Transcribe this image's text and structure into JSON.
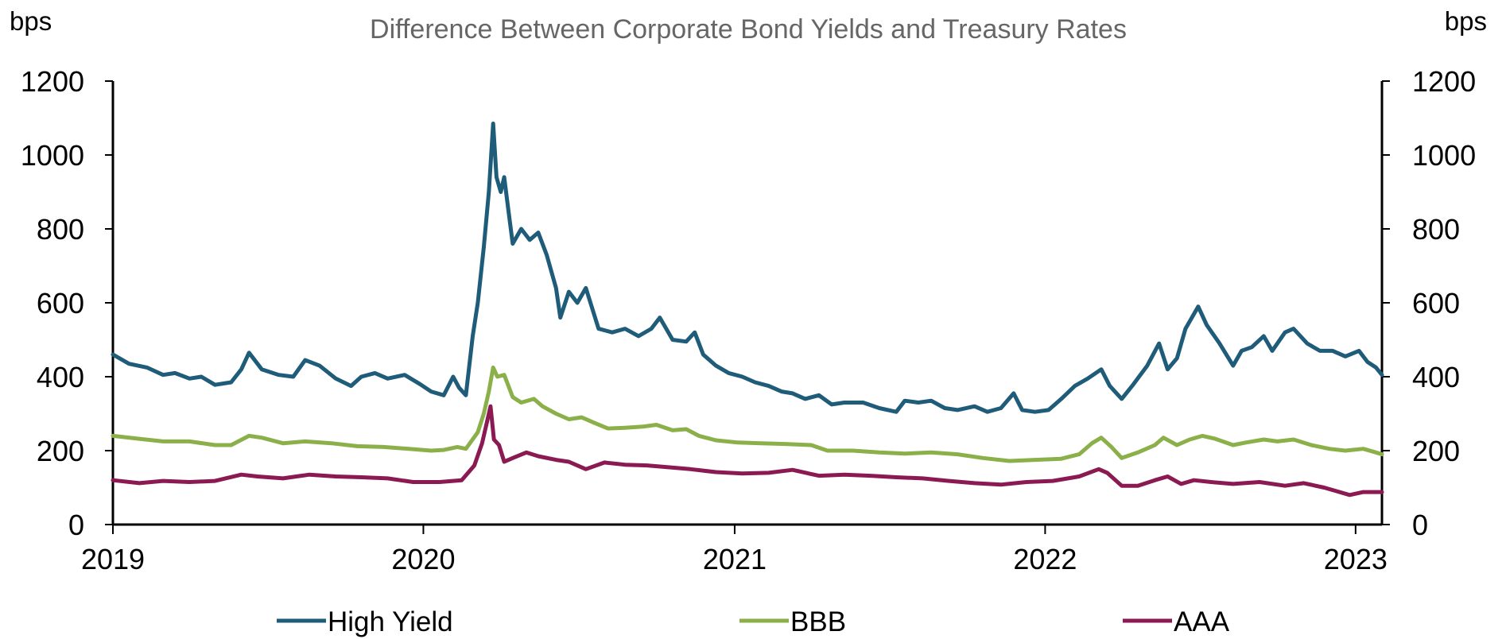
{
  "chart_data": {
    "type": "line",
    "title": "Difference Between Corporate Bond Yields and Treasury Rates",
    "y_unit_left": "bps",
    "y_unit_right": "bps",
    "ylim": [
      0,
      1200
    ],
    "y_ticks": [
      "0",
      "200",
      "400",
      "600",
      "800",
      "1000",
      "1200"
    ],
    "xlim": [
      "2019-01-01",
      "2023-02-01"
    ],
    "x_ticks": [
      {
        "label": "2019",
        "date": "2019-01-01"
      },
      {
        "label": "2020",
        "date": "2020-01-01"
      },
      {
        "label": "2021",
        "date": "2021-01-01"
      },
      {
        "label": "2022",
        "date": "2022-01-01"
      },
      {
        "label": "2023",
        "date": "2023-01-01"
      }
    ],
    "grid": false,
    "legend_position": "bottom",
    "series": [
      {
        "name": "High Yield",
        "color": "#1f5c7a",
        "points": [
          [
            "2019-01-01",
            460
          ],
          [
            "2019-01-20",
            435
          ],
          [
            "2019-02-10",
            425
          ],
          [
            "2019-03-01",
            405
          ],
          [
            "2019-03-15",
            410
          ],
          [
            "2019-04-01",
            395
          ],
          [
            "2019-04-15",
            400
          ],
          [
            "2019-05-01",
            378
          ],
          [
            "2019-05-20",
            385
          ],
          [
            "2019-06-01",
            420
          ],
          [
            "2019-06-10",
            465
          ],
          [
            "2019-06-25",
            420
          ],
          [
            "2019-07-15",
            405
          ],
          [
            "2019-08-01",
            400
          ],
          [
            "2019-08-15",
            445
          ],
          [
            "2019-09-01",
            430
          ],
          [
            "2019-09-20",
            395
          ],
          [
            "2019-10-08",
            375
          ],
          [
            "2019-10-20",
            400
          ],
          [
            "2019-11-05",
            410
          ],
          [
            "2019-11-20",
            395
          ],
          [
            "2019-12-10",
            405
          ],
          [
            "2019-12-28",
            380
          ],
          [
            "2020-01-10",
            360
          ],
          [
            "2020-01-25",
            350
          ],
          [
            "2020-02-05",
            400
          ],
          [
            "2020-02-12",
            370
          ],
          [
            "2020-02-20",
            350
          ],
          [
            "2020-02-28",
            510
          ],
          [
            "2020-03-05",
            600
          ],
          [
            "2020-03-12",
            750
          ],
          [
            "2020-03-18",
            900
          ],
          [
            "2020-03-23",
            1085
          ],
          [
            "2020-03-27",
            940
          ],
          [
            "2020-04-01",
            900
          ],
          [
            "2020-04-05",
            940
          ],
          [
            "2020-04-10",
            850
          ],
          [
            "2020-04-15",
            760
          ],
          [
            "2020-04-25",
            800
          ],
          [
            "2020-05-05",
            770
          ],
          [
            "2020-05-15",
            790
          ],
          [
            "2020-05-25",
            730
          ],
          [
            "2020-06-05",
            640
          ],
          [
            "2020-06-10",
            560
          ],
          [
            "2020-06-20",
            630
          ],
          [
            "2020-06-30",
            600
          ],
          [
            "2020-07-10",
            640
          ],
          [
            "2020-07-25",
            530
          ],
          [
            "2020-08-10",
            520
          ],
          [
            "2020-08-25",
            530
          ],
          [
            "2020-09-10",
            510
          ],
          [
            "2020-09-25",
            530
          ],
          [
            "2020-10-05",
            560
          ],
          [
            "2020-10-20",
            500
          ],
          [
            "2020-11-05",
            495
          ],
          [
            "2020-11-15",
            520
          ],
          [
            "2020-11-25",
            460
          ],
          [
            "2020-12-10",
            430
          ],
          [
            "2020-12-25",
            410
          ],
          [
            "2021-01-10",
            400
          ],
          [
            "2021-01-25",
            385
          ],
          [
            "2021-02-10",
            375
          ],
          [
            "2021-02-25",
            360
          ],
          [
            "2021-03-10",
            355
          ],
          [
            "2021-03-25",
            340
          ],
          [
            "2021-04-10",
            350
          ],
          [
            "2021-04-25",
            325
          ],
          [
            "2021-05-10",
            330
          ],
          [
            "2021-06-01",
            330
          ],
          [
            "2021-06-20",
            315
          ],
          [
            "2021-07-10",
            305
          ],
          [
            "2021-07-20",
            335
          ],
          [
            "2021-08-05",
            330
          ],
          [
            "2021-08-20",
            335
          ],
          [
            "2021-09-05",
            315
          ],
          [
            "2021-09-20",
            310
          ],
          [
            "2021-10-10",
            320
          ],
          [
            "2021-10-25",
            305
          ],
          [
            "2021-11-10",
            315
          ],
          [
            "2021-11-25",
            355
          ],
          [
            "2021-12-05",
            310
          ],
          [
            "2021-12-20",
            305
          ],
          [
            "2022-01-05",
            310
          ],
          [
            "2022-01-20",
            340
          ],
          [
            "2022-02-05",
            375
          ],
          [
            "2022-02-20",
            395
          ],
          [
            "2022-03-08",
            420
          ],
          [
            "2022-03-18",
            375
          ],
          [
            "2022-04-01",
            340
          ],
          [
            "2022-04-15",
            380
          ],
          [
            "2022-05-01",
            430
          ],
          [
            "2022-05-15",
            490
          ],
          [
            "2022-05-25",
            420
          ],
          [
            "2022-06-05",
            450
          ],
          [
            "2022-06-15",
            530
          ],
          [
            "2022-06-30",
            590
          ],
          [
            "2022-07-10",
            540
          ],
          [
            "2022-07-25",
            490
          ],
          [
            "2022-08-10",
            430
          ],
          [
            "2022-08-20",
            470
          ],
          [
            "2022-09-01",
            480
          ],
          [
            "2022-09-15",
            510
          ],
          [
            "2022-09-25",
            470
          ],
          [
            "2022-10-10",
            520
          ],
          [
            "2022-10-20",
            530
          ],
          [
            "2022-11-05",
            490
          ],
          [
            "2022-11-20",
            470
          ],
          [
            "2022-12-05",
            470
          ],
          [
            "2022-12-20",
            455
          ],
          [
            "2023-01-05",
            470
          ],
          [
            "2023-01-15",
            440
          ],
          [
            "2023-01-25",
            425
          ],
          [
            "2023-02-01",
            405
          ]
        ]
      },
      {
        "name": "BBB",
        "color": "#8bb04a",
        "points": [
          [
            "2019-01-01",
            240
          ],
          [
            "2019-02-01",
            232
          ],
          [
            "2019-03-01",
            225
          ],
          [
            "2019-04-01",
            225
          ],
          [
            "2019-05-01",
            215
          ],
          [
            "2019-05-20",
            215
          ],
          [
            "2019-06-10",
            240
          ],
          [
            "2019-06-25",
            235
          ],
          [
            "2019-07-20",
            220
          ],
          [
            "2019-08-15",
            225
          ],
          [
            "2019-09-15",
            220
          ],
          [
            "2019-10-15",
            212
          ],
          [
            "2019-11-15",
            210
          ],
          [
            "2019-12-15",
            205
          ],
          [
            "2020-01-10",
            200
          ],
          [
            "2020-01-25",
            202
          ],
          [
            "2020-02-10",
            210
          ],
          [
            "2020-02-20",
            205
          ],
          [
            "2020-03-05",
            250
          ],
          [
            "2020-03-12",
            300
          ],
          [
            "2020-03-18",
            360
          ],
          [
            "2020-03-23",
            425
          ],
          [
            "2020-03-28",
            400
          ],
          [
            "2020-04-05",
            405
          ],
          [
            "2020-04-15",
            345
          ],
          [
            "2020-04-25",
            330
          ],
          [
            "2020-05-10",
            340
          ],
          [
            "2020-05-20",
            320
          ],
          [
            "2020-06-05",
            300
          ],
          [
            "2020-06-20",
            285
          ],
          [
            "2020-07-05",
            290
          ],
          [
            "2020-07-20",
            275
          ],
          [
            "2020-08-05",
            260
          ],
          [
            "2020-08-25",
            262
          ],
          [
            "2020-09-15",
            265
          ],
          [
            "2020-10-01",
            270
          ],
          [
            "2020-10-20",
            255
          ],
          [
            "2020-11-05",
            258
          ],
          [
            "2020-11-20",
            240
          ],
          [
            "2020-12-10",
            228
          ],
          [
            "2021-01-05",
            222
          ],
          [
            "2021-02-01",
            220
          ],
          [
            "2021-03-01",
            218
          ],
          [
            "2021-04-01",
            215
          ],
          [
            "2021-04-20",
            200
          ],
          [
            "2021-05-20",
            200
          ],
          [
            "2021-06-20",
            195
          ],
          [
            "2021-07-20",
            192
          ],
          [
            "2021-08-20",
            195
          ],
          [
            "2021-09-20",
            190
          ],
          [
            "2021-10-20",
            180
          ],
          [
            "2021-11-20",
            172
          ],
          [
            "2021-12-20",
            175
          ],
          [
            "2022-01-20",
            178
          ],
          [
            "2022-02-10",
            190
          ],
          [
            "2022-02-25",
            220
          ],
          [
            "2022-03-08",
            235
          ],
          [
            "2022-03-20",
            210
          ],
          [
            "2022-04-01",
            180
          ],
          [
            "2022-04-20",
            195
          ],
          [
            "2022-05-10",
            215
          ],
          [
            "2022-05-20",
            235
          ],
          [
            "2022-06-05",
            215
          ],
          [
            "2022-06-20",
            230
          ],
          [
            "2022-07-05",
            240
          ],
          [
            "2022-07-20",
            232
          ],
          [
            "2022-08-10",
            215
          ],
          [
            "2022-08-25",
            222
          ],
          [
            "2022-09-15",
            230
          ],
          [
            "2022-10-01",
            225
          ],
          [
            "2022-10-20",
            230
          ],
          [
            "2022-11-10",
            215
          ],
          [
            "2022-12-01",
            205
          ],
          [
            "2022-12-20",
            200
          ],
          [
            "2023-01-10",
            205
          ],
          [
            "2023-01-25",
            195
          ],
          [
            "2023-02-01",
            190
          ]
        ]
      },
      {
        "name": "AAA",
        "color": "#8b1a52",
        "points": [
          [
            "2019-01-01",
            120
          ],
          [
            "2019-02-01",
            112
          ],
          [
            "2019-03-01",
            118
          ],
          [
            "2019-04-01",
            115
          ],
          [
            "2019-05-01",
            118
          ],
          [
            "2019-06-01",
            135
          ],
          [
            "2019-06-20",
            130
          ],
          [
            "2019-07-20",
            125
          ],
          [
            "2019-08-20",
            135
          ],
          [
            "2019-09-20",
            130
          ],
          [
            "2019-10-20",
            128
          ],
          [
            "2019-11-20",
            125
          ],
          [
            "2019-12-20",
            115
          ],
          [
            "2020-01-20",
            115
          ],
          [
            "2020-02-15",
            120
          ],
          [
            "2020-03-01",
            160
          ],
          [
            "2020-03-10",
            220
          ],
          [
            "2020-03-16",
            280
          ],
          [
            "2020-03-20",
            320
          ],
          [
            "2020-03-24",
            230
          ],
          [
            "2020-03-30",
            215
          ],
          [
            "2020-04-05",
            170
          ],
          [
            "2020-04-15",
            180
          ],
          [
            "2020-05-01",
            195
          ],
          [
            "2020-05-15",
            185
          ],
          [
            "2020-06-05",
            175
          ],
          [
            "2020-06-20",
            170
          ],
          [
            "2020-07-10",
            150
          ],
          [
            "2020-08-01",
            168
          ],
          [
            "2020-08-25",
            162
          ],
          [
            "2020-09-20",
            160
          ],
          [
            "2020-10-15",
            155
          ],
          [
            "2020-11-10",
            150
          ],
          [
            "2020-12-10",
            142
          ],
          [
            "2021-01-10",
            138
          ],
          [
            "2021-02-10",
            140
          ],
          [
            "2021-03-10",
            148
          ],
          [
            "2021-04-10",
            132
          ],
          [
            "2021-05-10",
            135
          ],
          [
            "2021-06-10",
            132
          ],
          [
            "2021-07-10",
            128
          ],
          [
            "2021-08-10",
            125
          ],
          [
            "2021-09-10",
            118
          ],
          [
            "2021-10-10",
            112
          ],
          [
            "2021-11-10",
            108
          ],
          [
            "2021-12-10",
            115
          ],
          [
            "2022-01-10",
            118
          ],
          [
            "2022-02-10",
            130
          ],
          [
            "2022-03-05",
            150
          ],
          [
            "2022-03-15",
            140
          ],
          [
            "2022-04-01",
            105
          ],
          [
            "2022-04-20",
            105
          ],
          [
            "2022-05-10",
            120
          ],
          [
            "2022-05-25",
            130
          ],
          [
            "2022-06-10",
            110
          ],
          [
            "2022-06-25",
            120
          ],
          [
            "2022-07-15",
            115
          ],
          [
            "2022-08-10",
            110
          ],
          [
            "2022-09-10",
            115
          ],
          [
            "2022-10-10",
            105
          ],
          [
            "2022-11-01",
            112
          ],
          [
            "2022-11-25",
            100
          ],
          [
            "2022-12-10",
            90
          ],
          [
            "2022-12-25",
            80
          ],
          [
            "2023-01-10",
            88
          ],
          [
            "2023-02-01",
            88
          ]
        ]
      }
    ]
  }
}
